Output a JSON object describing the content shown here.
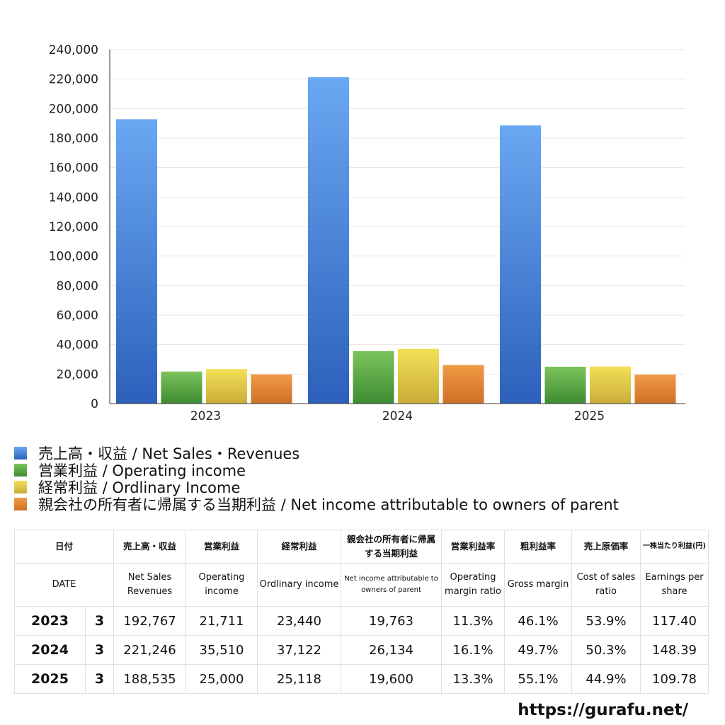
{
  "chart_data": {
    "type": "bar",
    "categories": [
      "2023",
      "2024",
      "2025"
    ],
    "series": [
      {
        "name": "売上高・収益 / Net Sales・Revenues",
        "values": [
          192767,
          221246,
          188535
        ],
        "color": "#4a86de",
        "color_light": "#6aa8f2",
        "color_dark": "#2d60bb"
      },
      {
        "name": "営業利益 / Operating income",
        "values": [
          21711,
          35510,
          25000
        ],
        "color": "#58a642",
        "color_light": "#7cc35b",
        "color_dark": "#3e8b33"
      },
      {
        "name": "経常利益 / Ordlinary Income",
        "values": [
          23440,
          37122,
          25118
        ],
        "color": "#e3cc47",
        "color_light": "#f4e056",
        "color_dark": "#c9ac3a"
      },
      {
        "name": "親会社の所有者に帰属する当期利益 / Net income attributable to owners of parent",
        "values": [
          19763,
          26134,
          19600
        ],
        "color": "#e38632",
        "color_light": "#ef9a45",
        "color_dark": "#d06f24"
      }
    ],
    "yticks": [
      "0",
      "20,000",
      "40,000",
      "60,000",
      "80,000",
      "100,000",
      "120,000",
      "140,000",
      "160,000",
      "180,000",
      "200,000",
      "220,000",
      "240,000"
    ],
    "ylim": [
      0,
      240000
    ],
    "grid": true,
    "legend_position": "bottom-left",
    "title": "",
    "xlabel": "",
    "ylabel": ""
  },
  "table": {
    "header_jp": [
      "日付",
      "売上高・収益",
      "営業利益",
      "経常利益",
      "親会社の所有者に帰属する当期利益",
      "営業利益率",
      "粗利益率",
      "売上原価率",
      "一株当たり利益(円)"
    ],
    "header_en": [
      "DATE",
      "Net Sales Revenues",
      "Operating income",
      "Ordlinary income",
      "Net income attributable to owners of parent",
      "Operating margin ratio",
      "Gross margin",
      "Cost of sales ratio",
      "Earnings per share"
    ],
    "rows": [
      {
        "year": "2023",
        "month": "3",
        "net_sales": "192,767",
        "operating_income": "21,711",
        "ordinary_income": "23,440",
        "net_income": "19,763",
        "operating_margin": "11.3%",
        "gross_margin": "46.1%",
        "cost_ratio": "53.9%",
        "eps": "117.40"
      },
      {
        "year": "2024",
        "month": "3",
        "net_sales": "221,246",
        "operating_income": "35,510",
        "ordinary_income": "37,122",
        "net_income": "26,134",
        "operating_margin": "16.1%",
        "gross_margin": "49.7%",
        "cost_ratio": "50.3%",
        "eps": "148.39"
      },
      {
        "year": "2025",
        "month": "3",
        "net_sales": "188,535",
        "operating_income": "25,000",
        "ordinary_income": "25,118",
        "net_income": "19,600",
        "operating_margin": "13.3%",
        "gross_margin": "55.1%",
        "cost_ratio": "44.9%",
        "eps": "109.78"
      }
    ]
  },
  "footer": {
    "url": "https://gurafu.net/"
  }
}
